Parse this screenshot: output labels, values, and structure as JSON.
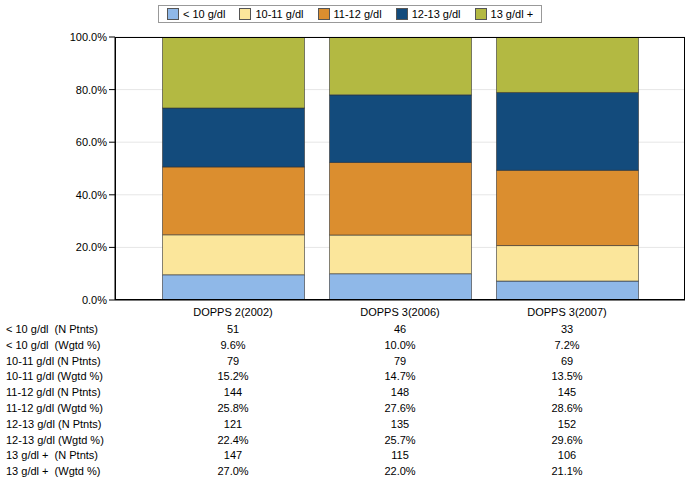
{
  "chart_data": {
    "type": "bar",
    "stacked": true,
    "grid": true,
    "legend": "top",
    "data_labels": false,
    "categories": [
      "DOPPS 2(2002)",
      "DOPPS 3(2006)",
      "DOPPS 3(2007)"
    ],
    "ylim": [
      0,
      100
    ],
    "yticks": [
      {
        "value": 0,
        "label": "0.0%"
      },
      {
        "value": 20,
        "label": "20.0%"
      },
      {
        "value": 40,
        "label": "40.0%"
      },
      {
        "value": 60,
        "label": "60.0%"
      },
      {
        "value": 80,
        "label": "80.0%"
      },
      {
        "value": 100,
        "label": "100.0%"
      }
    ],
    "series": [
      {
        "name": "< 10 g/dl",
        "color": "#8fb8e8",
        "values": [
          9.6,
          10.0,
          7.2
        ],
        "value_labels": [
          "9.6%",
          "10.0%",
          "7.2%"
        ],
        "n_ptnts": [
          51,
          46,
          33
        ],
        "table_labels": [
          "< 10 g/dl  (N Ptnts)",
          "< 10 g/dl  (Wgtd %)"
        ]
      },
      {
        "name": "10-11 g/dl",
        "color": "#fbe69b",
        "values": [
          15.2,
          14.7,
          13.5
        ],
        "value_labels": [
          "15.2%",
          "14.7%",
          "13.5%"
        ],
        "n_ptnts": [
          79,
          79,
          69
        ],
        "table_labels": [
          "10-11 g/dl (N Ptnts)",
          "10-11 g/dl (Wgtd %)"
        ]
      },
      {
        "name": "11-12 g/dl",
        "color": "#db8e2f",
        "values": [
          25.8,
          27.6,
          28.6
        ],
        "value_labels": [
          "25.8%",
          "27.6%",
          "28.6%"
        ],
        "n_ptnts": [
          144,
          148,
          145
        ],
        "table_labels": [
          "11-12 g/dl (N Ptnts)",
          "11-12 g/dl (Wgtd %)"
        ]
      },
      {
        "name": "12-13 g/dl",
        "color": "#134b7c",
        "values": [
          22.4,
          25.7,
          29.6
        ],
        "value_labels": [
          "22.4%",
          "25.7%",
          "29.6%"
        ],
        "n_ptnts": [
          121,
          135,
          152
        ],
        "table_labels": [
          "12-13 g/dl (N Ptnts)",
          "12-13 g/dl (Wgtd %)"
        ]
      },
      {
        "name": "13 g/dl +",
        "color": "#b3b942",
        "values": [
          27.0,
          22.0,
          21.1
        ],
        "value_labels": [
          "27.0%",
          "22.0%",
          "21.1%"
        ],
        "n_ptnts": [
          147,
          115,
          106
        ],
        "table_labels": [
          "13 g/dl +  (N Ptnts)",
          "13 g/dl +  (Wgtd %)"
        ]
      }
    ]
  }
}
